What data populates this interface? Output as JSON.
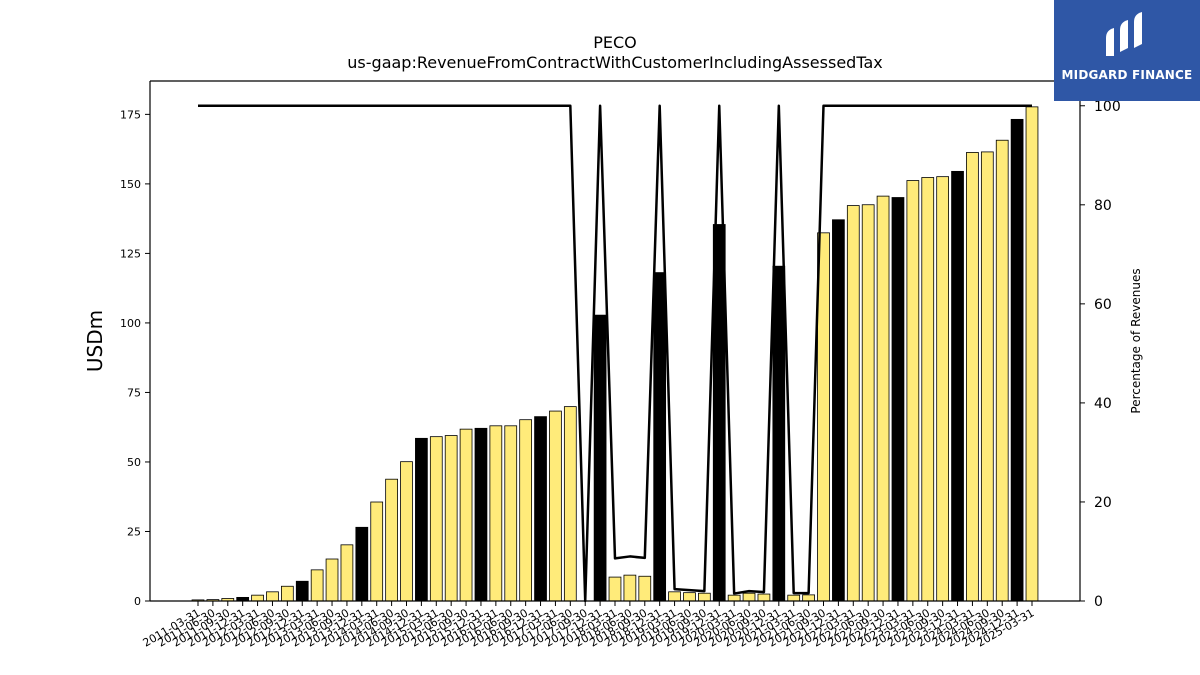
{
  "chart_data": {
    "type": "bar",
    "title": "PECO",
    "subtitle": "us-gaap:RevenueFromContractWithCustomerIncludingAssessedTax",
    "ylabel": "USDm",
    "y2label": "Percentage of Revenues",
    "ylim": [
      0,
      187
    ],
    "y2lim": [
      0,
      105
    ],
    "yticks": [
      0,
      25,
      50,
      75,
      100,
      125,
      150,
      175
    ],
    "y2ticks": [
      0,
      20,
      40,
      60,
      80,
      100
    ],
    "categories": [
      "2011-03-31",
      "2011-06-30",
      "2011-09-30",
      "2011-12-31",
      "2012-03-31",
      "2012-06-30",
      "2012-09-30",
      "2012-12-31",
      "2013-03-31",
      "2013-06-30",
      "2013-09-30",
      "2013-12-31",
      "2014-03-31",
      "2014-06-30",
      "2014-09-30",
      "2014-12-31",
      "2015-03-31",
      "2015-06-30",
      "2015-09-30",
      "2015-12-31",
      "2016-03-31",
      "2016-06-30",
      "2016-09-30",
      "2016-12-31",
      "2017-03-31",
      "2017-06-30",
      "2017-09-30",
      "2017-12-31",
      "2018-03-31",
      "2018-06-30",
      "2018-09-30",
      "2018-12-31",
      "2019-03-31",
      "2019-06-30",
      "2019-09-30",
      "2019-12-31",
      "2020-03-31",
      "2020-06-30",
      "2020-09-30",
      "2020-12-31",
      "2021-03-31",
      "2021-06-30",
      "2021-09-30",
      "2021-12-31",
      "2022-03-31",
      "2022-06-30",
      "2022-09-30",
      "2022-12-31",
      "2023-03-31",
      "2023-06-30",
      "2023-09-30",
      "2023-12-31",
      "2024-03-31",
      "2024-06-30",
      "2024-09-30",
      "2024-12-31",
      "2025-03-31"
    ],
    "series": [
      {
        "kind": "bar",
        "values": [
          0.4,
          0.5,
          0.9,
          1.3,
          2.1,
          3.3,
          5.3,
          7.1,
          11.2,
          15.1,
          20.2,
          26.5,
          35.6,
          43.8,
          50.1,
          58.5,
          59.1,
          59.5,
          61.8,
          62.1,
          63.0,
          63.0,
          65.2,
          66.3,
          68.3,
          69.9,
          0,
          102.8,
          8.6,
          9.3,
          8.9,
          118.1,
          3.3,
          3.0,
          2.8,
          135.4,
          2.1,
          2.8,
          2.5,
          120.4,
          2.1,
          2.2,
          132.4,
          137.1,
          142.2,
          142.5,
          145.6,
          145.1,
          151.2,
          152.3,
          152.6,
          154.5,
          161.3,
          161.5,
          165.7,
          173.2,
          177.7
        ],
        "highlight": [
          "yellow",
          "yellow",
          "yellow",
          "black",
          "yellow",
          "yellow",
          "yellow",
          "black",
          "yellow",
          "yellow",
          "yellow",
          "black",
          "yellow",
          "yellow",
          "yellow",
          "black",
          "yellow",
          "yellow",
          "yellow",
          "black",
          "yellow",
          "yellow",
          "yellow",
          "black",
          "yellow",
          "yellow",
          "yellow",
          "black",
          "yellow",
          "yellow",
          "yellow",
          "black",
          "yellow",
          "yellow",
          "yellow",
          "black",
          "yellow",
          "yellow",
          "yellow",
          "black",
          "yellow",
          "yellow",
          "yellow",
          "black",
          "yellow",
          "yellow",
          "yellow",
          "black",
          "yellow",
          "yellow",
          "yellow",
          "black",
          "yellow",
          "yellow",
          "yellow",
          "black",
          "yellow"
        ]
      },
      {
        "kind": "line",
        "axis": "right",
        "values": [
          100,
          100,
          100,
          100,
          100,
          100,
          100,
          100,
          100,
          100,
          100,
          100,
          100,
          100,
          100,
          100,
          100,
          100,
          100,
          100,
          100,
          100,
          100,
          100,
          100,
          100,
          0,
          100,
          8.6,
          9.0,
          8.7,
          100,
          2.4,
          2.2,
          2.0,
          100,
          1.5,
          2.0,
          1.8,
          100,
          1.6,
          1.6,
          100,
          100,
          100,
          100,
          100,
          100,
          100,
          100,
          100,
          100,
          100,
          100,
          100,
          100,
          100
        ]
      }
    ],
    "colors": {
      "yellow": "#ffeb7a",
      "black": "#000000",
      "line": "#000000"
    },
    "grid": false
  },
  "logo": {
    "text": "MIDGARD FINANCE",
    "bg": "#2f57a6"
  }
}
